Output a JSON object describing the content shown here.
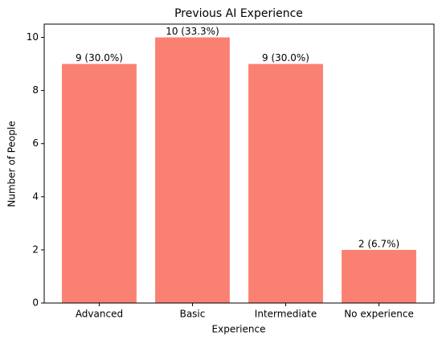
{
  "chart_data": {
    "type": "bar",
    "title": "Previous AI Experience",
    "x_label": "Experience",
    "y_label": "Number of People",
    "categories": [
      "Advanced",
      "Basic",
      "Intermediate",
      "No experience"
    ],
    "values": [
      9,
      10,
      9,
      2
    ],
    "value_labels": [
      "9 (30.0%)",
      "10 (33.3%)",
      "9 (30.0%)",
      "2 (6.7%)"
    ],
    "color": "#fa8072",
    "ylim": [
      0,
      10.5
    ],
    "yticks": [
      0,
      2,
      4,
      6,
      8,
      10
    ],
    "grid": false
  }
}
